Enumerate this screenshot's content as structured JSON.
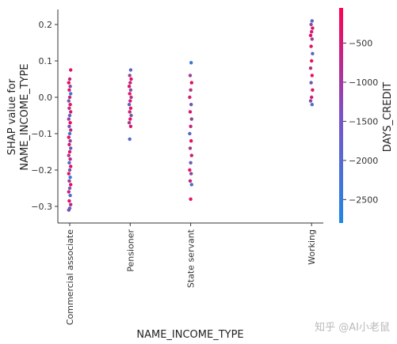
{
  "chart_data": {
    "type": "scatter",
    "title": "",
    "xlabel": "NAME_INCOME_TYPE",
    "ylabel_lines": [
      "SHAP value for",
      "NAME_INCOME_TYPE"
    ],
    "categories": [
      "Commercial associate",
      "Pensioner",
      "State servant",
      "Working"
    ],
    "x_positions": [
      0,
      1,
      2,
      4
    ],
    "ylim": [
      -0.35,
      0.245
    ],
    "yticks": [
      -0.3,
      -0.2,
      -0.1,
      0.0,
      0.1,
      0.2
    ],
    "ytick_labels": [
      "−0.3",
      "−0.2",
      "−0.1",
      "0.0",
      "0.1",
      "0.2"
    ],
    "grid": false,
    "colorbar": {
      "label": "DAYS_CREDIT",
      "range": [
        -2800,
        -50
      ],
      "ticks": [
        -500,
        -1000,
        -1500,
        -2000,
        -2500
      ],
      "tick_labels": [
        "−500",
        "−1000",
        "−1500",
        "−2000",
        "−2500"
      ],
      "colors": [
        "#1e88e5",
        "#ff0052"
      ]
    },
    "series": [
      {
        "category": "Commercial associate",
        "shap_min": -0.31,
        "shap_max": 0.075,
        "approx_points": [
          [
            -0.31,
            -1500
          ],
          [
            -0.305,
            -2100
          ],
          [
            -0.295,
            -900
          ],
          [
            -0.285,
            -400
          ],
          [
            -0.27,
            -2300
          ],
          [
            -0.26,
            -700
          ],
          [
            -0.25,
            -1800
          ],
          [
            -0.24,
            -300
          ],
          [
            -0.23,
            -1200
          ],
          [
            -0.22,
            -2600
          ],
          [
            -0.21,
            -500
          ],
          [
            -0.2,
            -1600
          ],
          [
            -0.19,
            -200
          ],
          [
            -0.18,
            -2200
          ],
          [
            -0.17,
            -800
          ],
          [
            -0.16,
            -1100
          ],
          [
            -0.15,
            -400
          ],
          [
            -0.14,
            -2000
          ],
          [
            -0.13,
            -600
          ],
          [
            -0.12,
            -1400
          ],
          [
            -0.11,
            -300
          ],
          [
            -0.1,
            -2400
          ],
          [
            -0.09,
            -900
          ],
          [
            -0.08,
            -1700
          ],
          [
            -0.07,
            -250
          ],
          [
            -0.06,
            -1300
          ],
          [
            -0.05,
            -2100
          ],
          [
            -0.04,
            -500
          ],
          [
            -0.03,
            -1000
          ],
          [
            -0.02,
            -350
          ],
          [
            -0.01,
            -1900
          ],
          [
            0.0,
            -700
          ],
          [
            0.01,
            -2500
          ],
          [
            0.02,
            -450
          ],
          [
            0.03,
            -1500
          ],
          [
            0.04,
            -300
          ],
          [
            0.05,
            -800
          ],
          [
            0.075,
            -400
          ]
        ]
      },
      {
        "category": "Pensioner",
        "shap_min": -0.115,
        "shap_max": 0.075,
        "approx_points": [
          [
            -0.115,
            -2200
          ],
          [
            -0.08,
            -500
          ],
          [
            -0.07,
            -1300
          ],
          [
            -0.06,
            -300
          ],
          [
            -0.05,
            -1800
          ],
          [
            -0.04,
            -700
          ],
          [
            -0.03,
            -400
          ],
          [
            -0.02,
            -2000
          ],
          [
            -0.01,
            -600
          ],
          [
            0.0,
            -1100
          ],
          [
            0.01,
            -350
          ],
          [
            0.02,
            -1600
          ],
          [
            0.03,
            -450
          ],
          [
            0.04,
            -900
          ],
          [
            0.05,
            -300
          ],
          [
            0.06,
            -1400
          ],
          [
            0.075,
            -2100
          ]
        ]
      },
      {
        "category": "State servant",
        "shap_min": -0.28,
        "shap_max": 0.095,
        "approx_points": [
          [
            -0.28,
            -400
          ],
          [
            -0.24,
            -2300
          ],
          [
            -0.23,
            -700
          ],
          [
            -0.21,
            -1500
          ],
          [
            -0.2,
            -350
          ],
          [
            -0.18,
            -1900
          ],
          [
            -0.16,
            -600
          ],
          [
            -0.14,
            -1200
          ],
          [
            -0.12,
            -300
          ],
          [
            -0.1,
            -2100
          ],
          [
            -0.08,
            -800
          ],
          [
            -0.06,
            -1400
          ],
          [
            -0.04,
            -450
          ],
          [
            -0.02,
            -1700
          ],
          [
            0.0,
            -550
          ],
          [
            0.02,
            -1000
          ],
          [
            0.04,
            -300
          ],
          [
            0.06,
            -1300
          ],
          [
            0.095,
            -2400
          ]
        ]
      },
      {
        "category": "Working",
        "shap_min": -0.02,
        "shap_max": 0.21,
        "approx_points": [
          [
            -0.02,
            -2300
          ],
          [
            -0.01,
            -1500
          ],
          [
            0.0,
            -600
          ],
          [
            0.02,
            -400
          ],
          [
            0.04,
            -1800
          ],
          [
            0.06,
            -300
          ],
          [
            0.08,
            -1000
          ],
          [
            0.1,
            -350
          ],
          [
            0.12,
            -2100
          ],
          [
            0.14,
            -500
          ],
          [
            0.16,
            -1300
          ],
          [
            0.17,
            -300
          ],
          [
            0.18,
            -700
          ],
          [
            0.19,
            -450
          ],
          [
            0.2,
            -1600
          ],
          [
            0.21,
            -2000
          ]
        ]
      }
    ]
  },
  "watermark": "知乎 @AI小老鼠"
}
